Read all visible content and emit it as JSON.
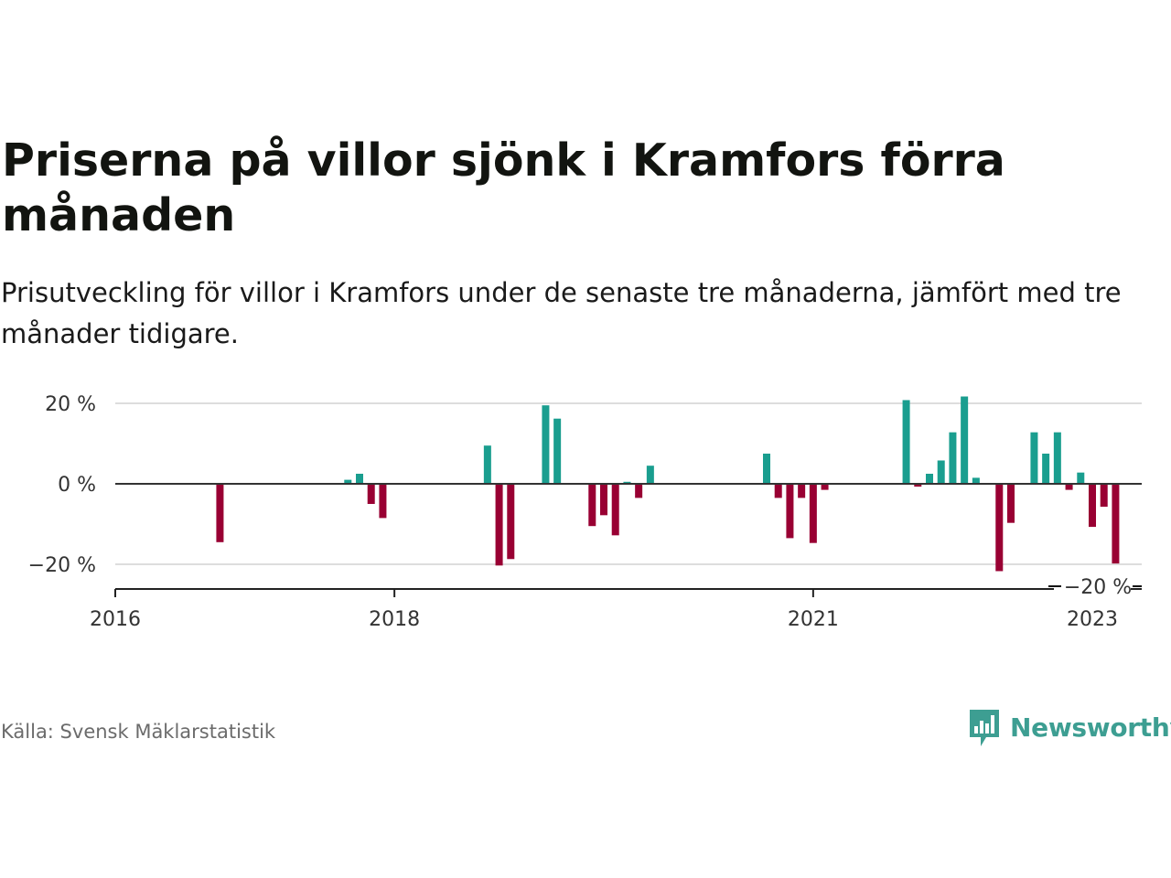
{
  "title": "Priserna på villor sjönk i Kramfors förra månaden",
  "subtitle": "Prisutveckling för villor i Kramfors under de senaste tre månaderna, jämfört med tre månader tidigare.",
  "source": "Källa: Svensk Mäklarstatistik",
  "brand": {
    "name": "Newsworthy",
    "icon": "newsworthy-chart-bubble-icon"
  },
  "colors": {
    "positive": "#1a9e8f",
    "negative": "#990033",
    "brand": "#3d9e92",
    "grid": "#dddddd",
    "zero_line": "#333333"
  },
  "chart_data": {
    "type": "bar",
    "ylim": [
      -25,
      22
    ],
    "yticks": [
      {
        "value": 20,
        "label": "20 %"
      },
      {
        "value": 0,
        "label": "0 %"
      },
      {
        "value": -20,
        "label": "−20 %"
      }
    ],
    "xticks": [
      {
        "date": "2016-01",
        "label": "2016"
      },
      {
        "date": "2018-01",
        "label": "2018"
      },
      {
        "date": "2021-01",
        "label": "2021"
      },
      {
        "date": "2023-01",
        "label": "2023"
      }
    ],
    "x_start": "2016-01",
    "x_end": "2023-03",
    "annotation": {
      "date": "2023-01",
      "label": "−20 %"
    },
    "points": [
      {
        "date": "2016-10",
        "value": -14.5
      },
      {
        "date": "2017-09",
        "value": 1
      },
      {
        "date": "2017-10",
        "value": 2.5
      },
      {
        "date": "2017-11",
        "value": -5
      },
      {
        "date": "2017-12",
        "value": -8.5
      },
      {
        "date": "2018-09",
        "value": 9.5
      },
      {
        "date": "2018-10",
        "value": -20.3
      },
      {
        "date": "2018-11",
        "value": -18.7
      },
      {
        "date": "2019-02",
        "value": 19.5
      },
      {
        "date": "2019-03",
        "value": 16.2
      },
      {
        "date": "2019-06",
        "value": -10.5
      },
      {
        "date": "2019-07",
        "value": -7.8
      },
      {
        "date": "2019-08",
        "value": -12.8
      },
      {
        "date": "2019-09",
        "value": 0.5
      },
      {
        "date": "2019-10",
        "value": -3.5
      },
      {
        "date": "2019-11",
        "value": 4.5
      },
      {
        "date": "2020-09",
        "value": 7.5
      },
      {
        "date": "2020-10",
        "value": -3.5
      },
      {
        "date": "2020-11",
        "value": -13.5
      },
      {
        "date": "2020-12",
        "value": -3.5
      },
      {
        "date": "2021-01",
        "value": -14.7
      },
      {
        "date": "2021-02",
        "value": -1.5
      },
      {
        "date": "2021-09",
        "value": 20.8
      },
      {
        "date": "2021-10",
        "value": -0.7
      },
      {
        "date": "2021-11",
        "value": 2.5
      },
      {
        "date": "2021-12",
        "value": 5.8
      },
      {
        "date": "2022-01",
        "value": 12.8
      },
      {
        "date": "2022-02",
        "value": 21.7
      },
      {
        "date": "2022-03",
        "value": 1.5
      },
      {
        "date": "2022-05",
        "value": -21.7
      },
      {
        "date": "2022-06",
        "value": -9.7
      },
      {
        "date": "2022-08",
        "value": 12.8
      },
      {
        "date": "2022-09",
        "value": 7.5
      },
      {
        "date": "2022-10",
        "value": 12.8
      },
      {
        "date": "2022-11",
        "value": -1.5
      },
      {
        "date": "2022-12",
        "value": 2.8
      },
      {
        "date": "2023-01",
        "value": -10.7
      },
      {
        "date": "2023-02",
        "value": -5.7
      },
      {
        "date": "2023-03",
        "value": -19.8
      }
    ]
  }
}
